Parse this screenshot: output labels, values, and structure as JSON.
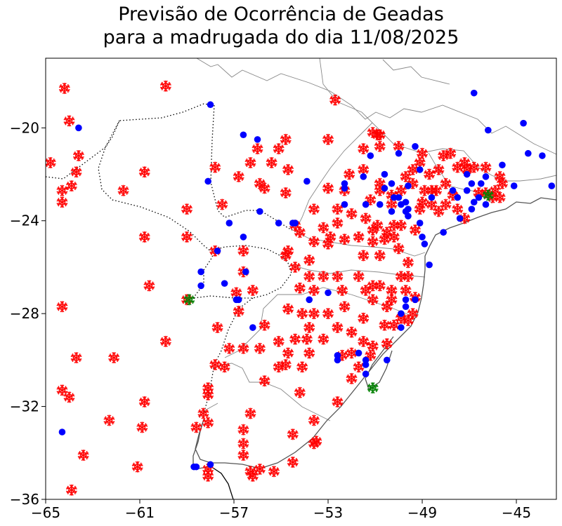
{
  "title": {
    "line1": "Previsão de Ocorrência de Geadas",
    "line2": "para a madrugada do dia 11/08/2025"
  },
  "chart_data": {
    "type": "scatter",
    "title": "Previsão de Ocorrência de Geadas para a madrugada do dia 11/08/2025",
    "xlabel": "",
    "ylabel": "",
    "xlim": [
      -65,
      -43.3
    ],
    "ylim": [
      -36,
      -17
    ],
    "x_ticks": [
      "−65",
      "−61",
      "−57",
      "−53",
      "−49",
      "−45"
    ],
    "x_tick_values": [
      -65,
      -61,
      -57,
      -53,
      -49,
      -45
    ],
    "y_ticks": [
      "−20",
      "−24",
      "−28",
      "−32",
      "−36"
    ],
    "y_tick_values": [
      -20,
      -24,
      -28,
      -32,
      -36
    ],
    "grid": false,
    "legend": "none",
    "background_map": "South America borders (countries dotted black, Brazilian states gray, coastline dark gray)",
    "series": [
      {
        "marker": "snowflake",
        "color": "#ff0000",
        "points": [
          [
            -64.2,
            -18.3
          ],
          [
            -64.0,
            -19.7
          ],
          [
            -64.8,
            -21.5
          ],
          [
            -64.3,
            -22.7
          ],
          [
            -64.3,
            -23.2
          ],
          [
            -63.9,
            -22.5
          ],
          [
            -63.7,
            -21.9
          ],
          [
            -63.6,
            -21.2
          ],
          [
            -61.7,
            -22.7
          ],
          [
            -60.8,
            -21.9
          ],
          [
            -59.9,
            -18.2
          ],
          [
            -60.8,
            -24.7
          ],
          [
            -60.6,
            -26.8
          ],
          [
            -59.0,
            -23.5
          ],
          [
            -59.0,
            -24.7
          ],
          [
            -64.3,
            -27.7
          ],
          [
            -63.7,
            -29.9
          ],
          [
            -64.0,
            -31.6
          ],
          [
            -64.3,
            -31.3
          ],
          [
            -63.4,
            -34.1
          ],
          [
            -63.9,
            -35.6
          ],
          [
            -62.1,
            -29.9
          ],
          [
            -62.3,
            -32.6
          ],
          [
            -61.1,
            -34.6
          ],
          [
            -60.9,
            -32.9
          ],
          [
            -60.8,
            -31.8
          ],
          [
            -59.9,
            -29.2
          ],
          [
            -59.0,
            -27.4
          ],
          [
            -57.8,
            -25.3
          ],
          [
            -57.8,
            -21.7
          ],
          [
            -57.5,
            -23.3
          ],
          [
            -56.8,
            -22.1
          ],
          [
            -56.6,
            -25.3
          ],
          [
            -56.6,
            -26.2
          ],
          [
            -56.3,
            -21.5
          ],
          [
            -56.0,
            -20.9
          ],
          [
            -55.9,
            -22.4
          ],
          [
            -55.7,
            -22.6
          ],
          [
            -55.4,
            -21.5
          ],
          [
            -55.1,
            -20.9
          ],
          [
            -54.8,
            -20.5
          ],
          [
            -54.8,
            -22.8
          ],
          [
            -54.7,
            -21.8
          ],
          [
            -54.4,
            -24.2
          ],
          [
            -54.2,
            -24.5
          ],
          [
            -54.7,
            -25.3
          ],
          [
            -54.8,
            -25.5
          ],
          [
            -54.4,
            -26.0
          ],
          [
            -53.8,
            -25.7
          ],
          [
            -53.6,
            -24.9
          ],
          [
            -53.6,
            -23.5
          ],
          [
            -53.2,
            -24.3
          ],
          [
            -53.0,
            -22.6
          ],
          [
            -53.0,
            -20.5
          ],
          [
            -52.7,
            -18.8
          ],
          [
            -52.6,
            -24.1
          ],
          [
            -52.3,
            -24.8
          ],
          [
            -52.0,
            -23.7
          ],
          [
            -51.7,
            -24.7
          ],
          [
            -51.5,
            -25.5
          ],
          [
            -51.4,
            -23.9
          ],
          [
            -51.2,
            -23.1
          ],
          [
            -51.1,
            -24.9
          ],
          [
            -50.9,
            -24.2
          ],
          [
            -50.8,
            -25.5
          ],
          [
            -50.6,
            -24.8
          ],
          [
            -50.3,
            -23.3
          ],
          [
            -50.2,
            -24.2
          ],
          [
            -50.0,
            -25.2
          ],
          [
            -49.9,
            -26.4
          ],
          [
            -49.6,
            -25.8
          ],
          [
            -51.1,
            -20.2
          ],
          [
            -50.9,
            -20.3
          ],
          [
            -50.8,
            -20.3
          ],
          [
            -50.8,
            -20.8
          ],
          [
            -50.0,
            -20.8
          ],
          [
            -49.7,
            -22.1
          ],
          [
            -49.4,
            -21.8
          ],
          [
            -49.1,
            -21.5
          ],
          [
            -49.0,
            -21.1
          ],
          [
            -48.7,
            -22.0
          ],
          [
            -48.4,
            -22.7
          ],
          [
            -48.3,
            -21.8
          ],
          [
            -48.1,
            -21.2
          ],
          [
            -47.8,
            -21.1
          ],
          [
            -47.5,
            -21.7
          ],
          [
            -47.2,
            -21.5
          ],
          [
            -47.1,
            -21.8
          ],
          [
            -46.8,
            -21.7
          ],
          [
            -46.3,
            -21.7
          ],
          [
            -45.7,
            -22.1
          ],
          [
            -45.6,
            -22.4
          ],
          [
            -45.9,
            -22.7
          ],
          [
            -45.7,
            -23.0
          ],
          [
            -46.0,
            -23.0
          ],
          [
            -46.3,
            -22.8
          ],
          [
            -46.6,
            -22.8
          ],
          [
            -47.2,
            -23.9
          ],
          [
            -47.5,
            -23.5
          ],
          [
            -48.0,
            -23.3
          ],
          [
            -48.3,
            -23.6
          ],
          [
            -48.6,
            -23.3
          ],
          [
            -49.0,
            -23.2
          ],
          [
            -49.1,
            -23.5
          ],
          [
            -49.3,
            -24.4
          ],
          [
            -49.9,
            -24.2
          ],
          [
            -50.2,
            -24.7
          ],
          [
            -50.5,
            -24.5
          ],
          [
            -51.1,
            -24.4
          ],
          [
            -50.8,
            -22.4
          ],
          [
            -50.3,
            -22.9
          ],
          [
            -49.9,
            -22.7
          ],
          [
            -49.4,
            -22.4
          ],
          [
            -48.9,
            -22.7
          ],
          [
            -50.8,
            -22.7
          ],
          [
            -51.5,
            -21.8
          ],
          [
            -51.5,
            -20.9
          ],
          [
            -52.1,
            -22.0
          ],
          [
            -52.3,
            -22.7
          ],
          [
            -52.6,
            -23.5
          ],
          [
            -52.9,
            -24.7
          ],
          [
            -53.0,
            -25.0
          ],
          [
            -47.7,
            -22.9
          ],
          [
            -48.0,
            -22.4
          ],
          [
            -48.6,
            -22.7
          ],
          [
            -53.8,
            -26.4
          ],
          [
            -53.6,
            -27.0
          ],
          [
            -53.2,
            -26.4
          ],
          [
            -52.6,
            -26.4
          ],
          [
            -52.4,
            -27.0
          ],
          [
            -52.3,
            -27.7
          ],
          [
            -51.7,
            -26.4
          ],
          [
            -51.4,
            -27.0
          ],
          [
            -51.1,
            -26.8
          ],
          [
            -50.8,
            -26.8
          ],
          [
            -51.1,
            -27.4
          ],
          [
            -50.5,
            -27.7
          ],
          [
            -50.6,
            -28.5
          ],
          [
            -50.2,
            -28.5
          ],
          [
            -49.9,
            -28.2
          ],
          [
            -49.6,
            -28.3
          ],
          [
            -49.4,
            -28.0
          ],
          [
            -49.3,
            -27.3
          ],
          [
            -49.7,
            -27.0
          ],
          [
            -49.6,
            -26.4
          ],
          [
            -50.3,
            -27.0
          ],
          [
            -50.3,
            -27.4
          ],
          [
            -51.5,
            -28.2
          ],
          [
            -52.0,
            -28.8
          ],
          [
            -52.6,
            -28.6
          ],
          [
            -53.0,
            -28.0
          ],
          [
            -53.6,
            -28.0
          ],
          [
            -54.1,
            -28.0
          ],
          [
            -54.7,
            -27.8
          ],
          [
            -54.2,
            -26.9
          ],
          [
            -53.8,
            -28.6
          ],
          [
            -54.4,
            -29.1
          ],
          [
            -53.9,
            -29.1
          ],
          [
            -53.2,
            -29.1
          ],
          [
            -52.4,
            -29.8
          ],
          [
            -52.0,
            -29.7
          ],
          [
            -51.5,
            -29.2
          ],
          [
            -51.1,
            -29.4
          ],
          [
            -51.2,
            -29.8
          ],
          [
            -51.7,
            -30.3
          ],
          [
            -52.0,
            -30.8
          ],
          [
            -52.6,
            -31.8
          ],
          [
            -53.8,
            -29.7
          ],
          [
            -54.7,
            -29.7
          ],
          [
            -54.8,
            -30.2
          ],
          [
            -54.1,
            -30.3
          ],
          [
            -54.2,
            -31.4
          ],
          [
            -55.1,
            -29.2
          ],
          [
            -55.1,
            -30.3
          ],
          [
            -55.7,
            -30.9
          ],
          [
            -55.9,
            -29.5
          ],
          [
            -56.6,
            -29.5
          ],
          [
            -57.2,
            -29.5
          ],
          [
            -57.4,
            -30.3
          ],
          [
            -58.1,
            -31.2
          ],
          [
            -58.1,
            -31.5
          ],
          [
            -57.8,
            -30.2
          ],
          [
            -57.7,
            -28.6
          ],
          [
            -56.8,
            -27.9
          ],
          [
            -55.7,
            -28.5
          ],
          [
            -56.2,
            -27.0
          ],
          [
            -56.9,
            -27.1
          ],
          [
            -58.1,
            -32.7
          ],
          [
            -58.3,
            -32.3
          ],
          [
            -58.6,
            -32.9
          ],
          [
            -58.1,
            -34.7
          ],
          [
            -58.1,
            -35.0
          ],
          [
            -56.6,
            -33.0
          ],
          [
            -56.3,
            -32.3
          ],
          [
            -56.6,
            -33.6
          ],
          [
            -56.6,
            -34.1
          ],
          [
            -56.3,
            -34.8
          ],
          [
            -56.2,
            -35.0
          ],
          [
            -55.9,
            -34.7
          ],
          [
            -55.3,
            -34.8
          ],
          [
            -54.5,
            -34.4
          ],
          [
            -54.5,
            -33.2
          ],
          [
            -53.6,
            -32.6
          ],
          [
            -53.6,
            -33.6
          ],
          [
            -53.5,
            -33.5
          ],
          [
            -50.5,
            -29.3
          ]
        ]
      },
      {
        "marker": "circle",
        "color": "#0000ff",
        "points": [
          [
            -63.6,
            -20.0
          ],
          [
            -58.0,
            -19.0
          ],
          [
            -58.1,
            -22.3
          ],
          [
            -56.6,
            -20.3
          ],
          [
            -56.0,
            -20.5
          ],
          [
            -57.2,
            -24.1
          ],
          [
            -56.6,
            -24.7
          ],
          [
            -55.9,
            -23.6
          ],
          [
            -55.1,
            -24.1
          ],
          [
            -54.5,
            -24.1
          ],
          [
            -54.4,
            -24.1
          ],
          [
            -53.9,
            -22.3
          ],
          [
            -52.3,
            -22.4
          ],
          [
            -52.3,
            -23.3
          ],
          [
            -51.4,
            -23.3
          ],
          [
            -50.8,
            -23.3
          ],
          [
            -50.3,
            -23.6
          ],
          [
            -52.3,
            -22.6
          ],
          [
            -51.5,
            -22.1
          ],
          [
            -51.2,
            -21.2
          ],
          [
            -50.6,
            -22.0
          ],
          [
            -50.0,
            -21.1
          ],
          [
            -49.3,
            -20.8
          ],
          [
            -49.1,
            -21.8
          ],
          [
            -49.6,
            -22.5
          ],
          [
            -50.0,
            -23.0
          ],
          [
            -49.9,
            -23.3
          ],
          [
            -49.7,
            -23.2
          ],
          [
            -49.6,
            -23.5
          ],
          [
            -49.6,
            -23.8
          ],
          [
            -49.1,
            -24.1
          ],
          [
            -49.7,
            -23.6
          ],
          [
            -50.6,
            -22.6
          ],
          [
            -50.3,
            -22.4
          ],
          [
            -50.2,
            -23.0
          ],
          [
            -49.0,
            -24.7
          ],
          [
            -48.9,
            -25.0
          ],
          [
            -48.7,
            -25.9
          ],
          [
            -49.3,
            -27.4
          ],
          [
            -49.7,
            -27.7
          ],
          [
            -49.9,
            -28.0
          ],
          [
            -49.9,
            -28.6
          ],
          [
            -49.7,
            -27.4
          ],
          [
            -50.5,
            -30.0
          ],
          [
            -51.4,
            -30.6
          ],
          [
            -51.4,
            -30.2
          ],
          [
            -51.4,
            -30.0
          ],
          [
            -52.6,
            -29.8
          ],
          [
            -52.6,
            -30.0
          ],
          [
            -51.7,
            -29.7
          ],
          [
            -53.0,
            -27.1
          ],
          [
            -53.8,
            -27.4
          ],
          [
            -56.2,
            -28.6
          ],
          [
            -56.5,
            -26.2
          ],
          [
            -56.8,
            -27.4
          ],
          [
            -56.9,
            -27.4
          ],
          [
            -57.4,
            -26.7
          ],
          [
            -58.4,
            -26.2
          ],
          [
            -58.4,
            -26.8
          ],
          [
            -57.7,
            -25.3
          ],
          [
            -46.8,
            -18.5
          ],
          [
            -46.2,
            -20.1
          ],
          [
            -44.7,
            -19.8
          ],
          [
            -44.5,
            -21.1
          ],
          [
            -43.9,
            -21.2
          ],
          [
            -43.5,
            -22.5
          ],
          [
            -45.1,
            -22.5
          ],
          [
            -45.6,
            -21.6
          ],
          [
            -47.1,
            -22.7
          ],
          [
            -46.9,
            -22.4
          ],
          [
            -46.6,
            -23.0
          ],
          [
            -46.3,
            -23.3
          ],
          [
            -46.9,
            -23.5
          ],
          [
            -46.8,
            -23.2
          ],
          [
            -47.5,
            -23.0
          ],
          [
            -47.7,
            -22.7
          ],
          [
            -48.6,
            -23.0
          ],
          [
            -48.1,
            -24.5
          ],
          [
            -47.1,
            -22.0
          ],
          [
            -46.5,
            -22.4
          ],
          [
            -46.3,
            -22.1
          ],
          [
            -47.4,
            -23.9
          ],
          [
            -64.3,
            -33.1
          ],
          [
            -58.0,
            -34.5
          ],
          [
            -58.6,
            -34.6
          ],
          [
            -58.7,
            -34.6
          ]
        ]
      },
      {
        "marker": "snowflake",
        "color": "#008000",
        "points": [
          [
            -58.9,
            -27.4
          ],
          [
            -51.1,
            -31.2
          ],
          [
            -46.2,
            -22.9
          ]
        ]
      }
    ]
  }
}
